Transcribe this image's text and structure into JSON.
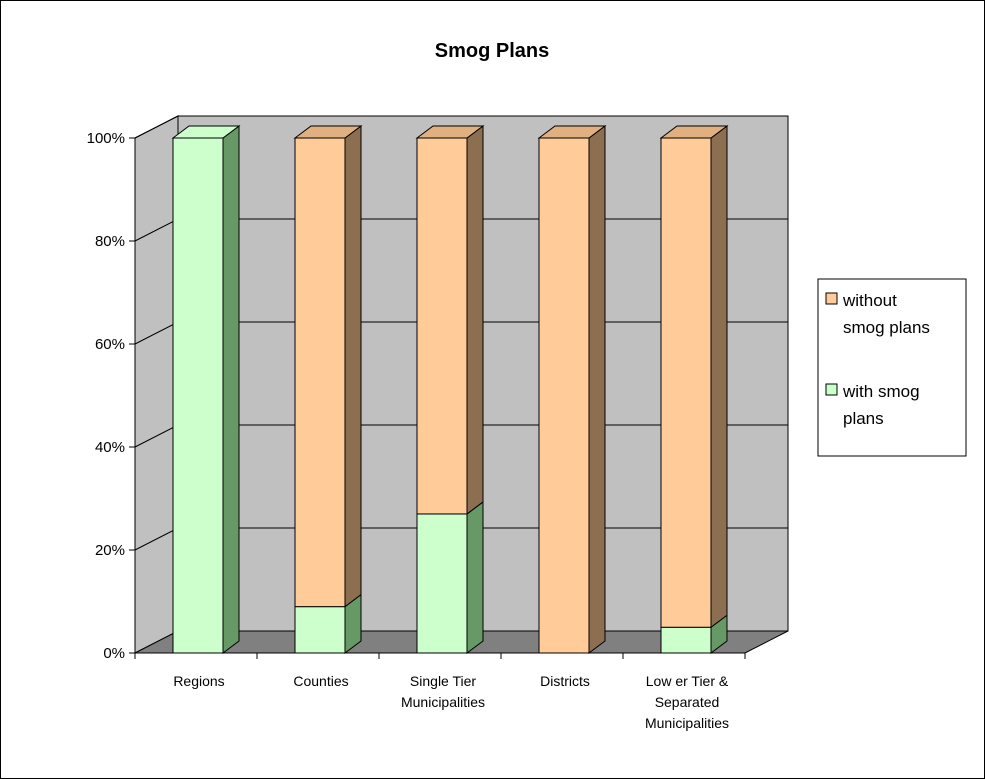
{
  "chart_data": {
    "type": "bar",
    "stacked": true,
    "percent_stacked": true,
    "three_d": true,
    "title": "Smog Plans",
    "categories": [
      "Regions",
      "Counties",
      "Single Tier Municipalities",
      "Districts",
      "Low er Tier & Separated Municipalities"
    ],
    "category_lines": [
      [
        "Regions"
      ],
      [
        "Counties"
      ],
      [
        "Single Tier",
        "Municipalities"
      ],
      [
        "Districts"
      ],
      [
        "Low er Tier &",
        "Separated",
        "Municipalities"
      ]
    ],
    "series": [
      {
        "name": "with smog plans",
        "color": "#ccffcc",
        "values": [
          100,
          9,
          27,
          0,
          5
        ]
      },
      {
        "name": "without smog plans",
        "color": "#ffcc99",
        "values": [
          0,
          91,
          73,
          100,
          95
        ]
      }
    ],
    "yticks": [
      "0%",
      "20%",
      "40%",
      "60%",
      "80%",
      "100%"
    ],
    "ylim": [
      0,
      100
    ],
    "grid": true,
    "legend_position": "right",
    "legend_lines": [
      [
        "without",
        "smog plans"
      ],
      [
        "with smog",
        "plans"
      ]
    ],
    "colors": {
      "wall": "#c0c0c0",
      "floor": "#808080",
      "with_side": "#669966",
      "without_side": "#8c6e50",
      "without_top": "#e0b080"
    }
  }
}
